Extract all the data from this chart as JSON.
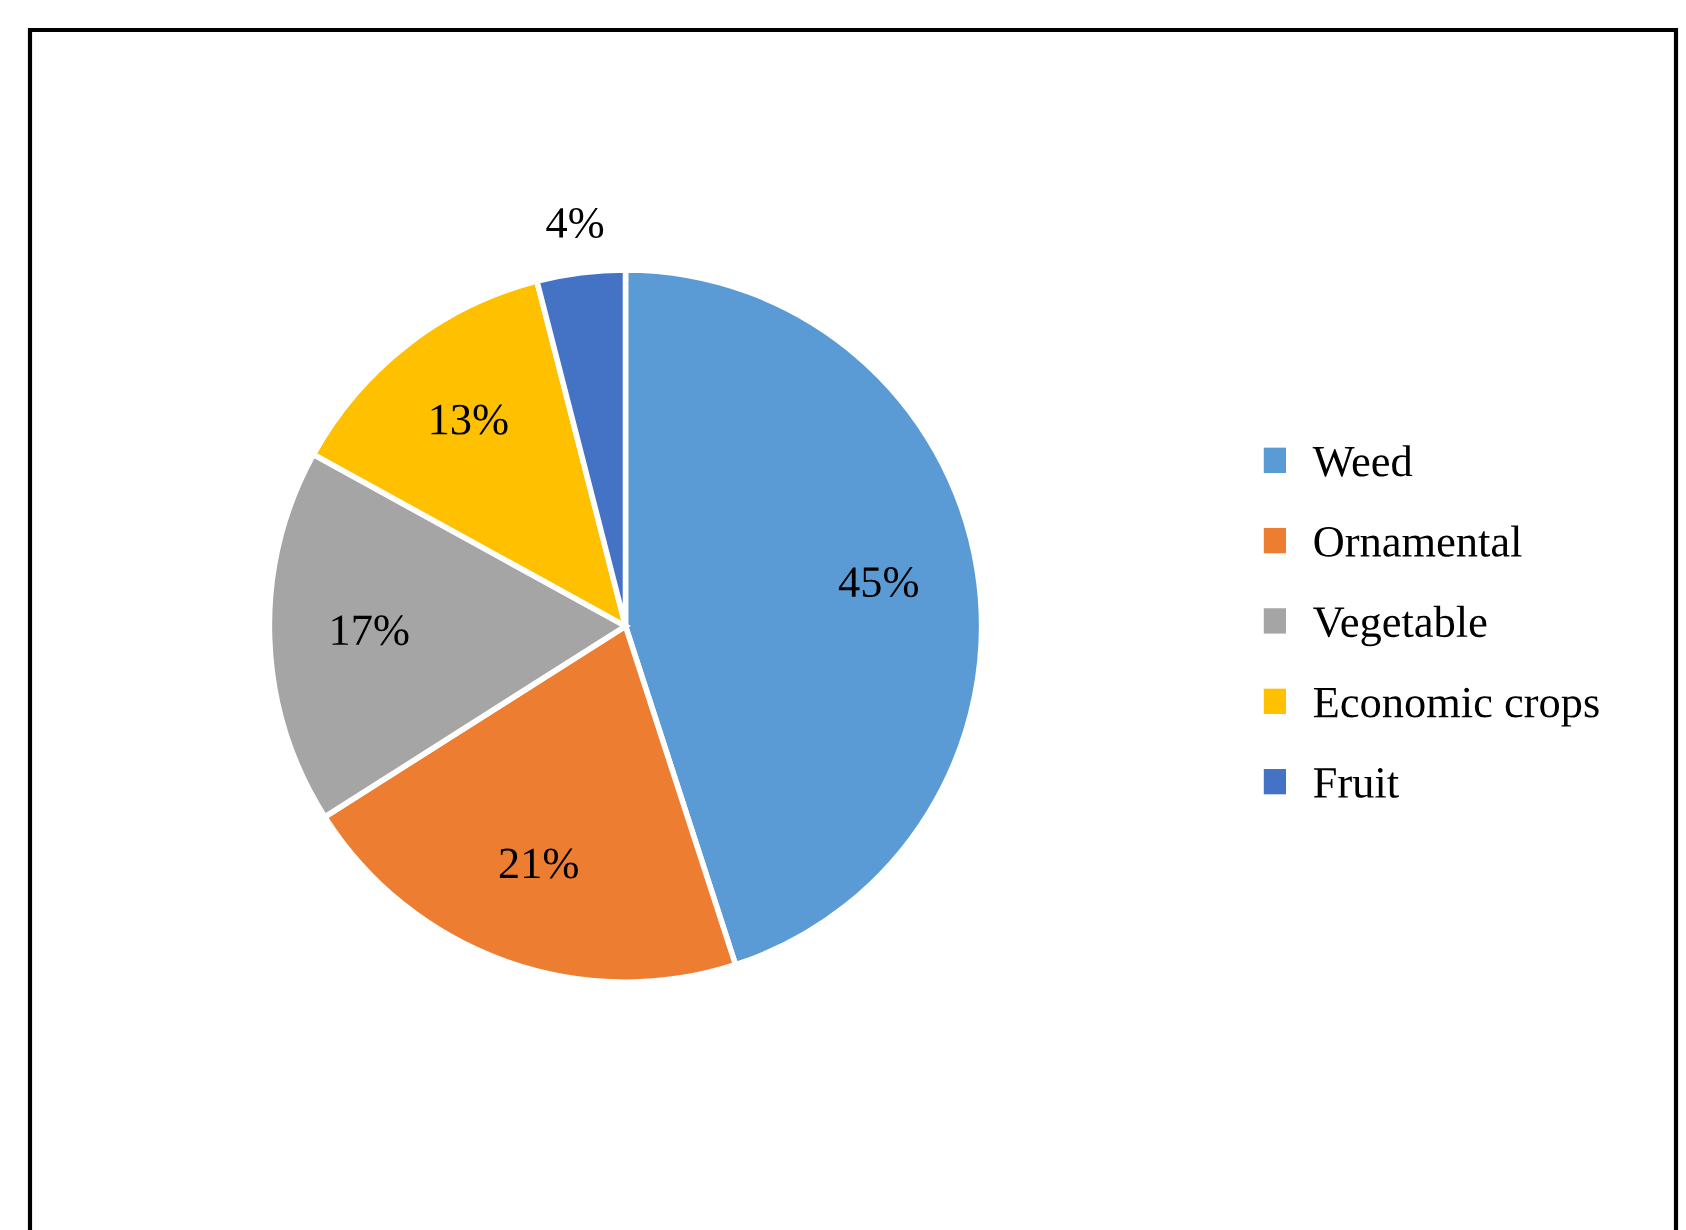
{
  "chart_data": {
    "type": "pie",
    "categories": [
      "Weed",
      "Ornamental",
      "Vegetable",
      "Economic crops",
      "Fruit"
    ],
    "values": [
      45,
      21,
      17,
      13,
      4
    ],
    "colors": [
      "#5b9bd5",
      "#ed7d31",
      "#a5a5a5",
      "#ffc000",
      "#4472c4"
    ],
    "value_labels": [
      "45%",
      "21%",
      "17%",
      "13%",
      "4%"
    ],
    "legend": "right"
  }
}
